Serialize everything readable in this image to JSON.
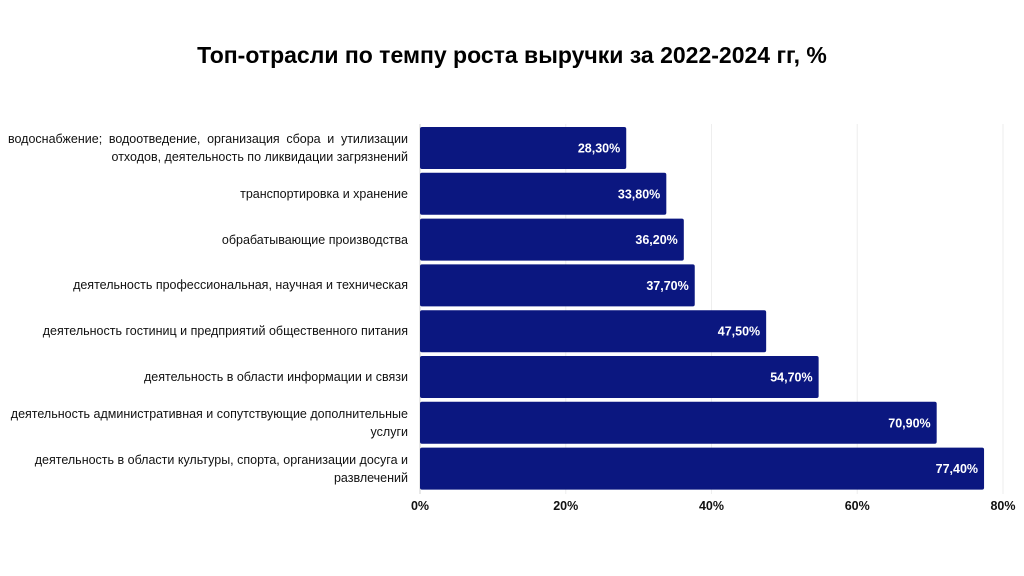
{
  "chart_data": {
    "type": "bar",
    "orientation": "horizontal",
    "title": "Топ-отрасли по темпу роста выручки за 2022-2024 гг, %",
    "categories": [
      "водоснабжение; водоотведение, организация сбора и утилизации отходов, деятельность по ликвидации загрязнений",
      "транспортировка и хранение",
      "обрабатывающие производства",
      "деятельность профессиональная, научная и техническая",
      "деятельность гостиниц и предприятий общественного питания",
      "деятельность в области информации и связи",
      "деятельность административная и сопутствующие дополнительные услуги",
      "деятельность в области культуры, спорта, организации досуга и развлечений"
    ],
    "values": [
      28.3,
      33.8,
      36.2,
      37.7,
      47.5,
      54.7,
      70.9,
      77.4
    ],
    "value_labels": [
      "28,30%",
      "33,80%",
      "36,20%",
      "37,70%",
      "47,50%",
      "54,70%",
      "70,90%",
      "77,40%"
    ],
    "xlim": [
      0,
      80
    ],
    "x_ticks": [
      0,
      20,
      40,
      60,
      80
    ],
    "x_tick_labels": [
      "0%",
      "20%",
      "40%",
      "60%",
      "80%"
    ],
    "grid": true,
    "legend": "none",
    "bar_color": "#0b1780",
    "label_color": "#ffffff"
  }
}
